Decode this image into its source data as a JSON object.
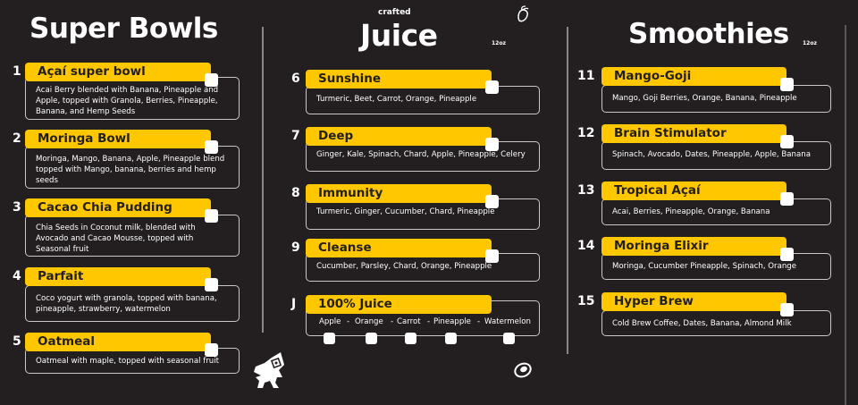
{
  "colors": {
    "background": "#231f20",
    "accent": "#ffc700",
    "text": "#ffffff"
  },
  "bowls": {
    "title": "Super Bowls",
    "items": [
      {
        "number": "1",
        "name": "Açaí super bowl",
        "description": "Acai Berry blended with Banana, Pineapple and Apple, topped with Granola, Berries, Pineapple, Banana, and Hemp Seeds"
      },
      {
        "number": "2",
        "name": "Moringa Bowl",
        "description": "Moringa, Mango, Banana, Apple, Pineapple blend topped with Mango, banana, berries and hemp seeds"
      },
      {
        "number": "3",
        "name": "Cacao Chia Pudding",
        "description": "Chia Seeds in Coconut milk, blended with Avocado and Cacao Mousse, topped with Seasonal fruit"
      },
      {
        "number": "4",
        "name": "Parfait",
        "description": "Coco yogurt with granola, topped with banana, pineapple, strawberry, watermelon"
      },
      {
        "number": "5",
        "name": "Oatmeal",
        "description": "Oatmeal with maple, topped with seasonal fruit"
      }
    ]
  },
  "juice": {
    "kicker": "crafted",
    "title": "Juice",
    "size": "12oz",
    "items": [
      {
        "number": "6",
        "name": "Sunshine",
        "description": "Turmeric, Beet, Carrot, Orange, Pineapple"
      },
      {
        "number": "7",
        "name": "Deep",
        "description": "Ginger, Kale, Spinach, Chard, Apple, Pineapple, Celery"
      },
      {
        "number": "8",
        "name": "Immunity",
        "description": "Turmeric, Ginger, Cucumber, Chard, Pineapple"
      },
      {
        "number": "9",
        "name": "Cleanse",
        "description": "Cucumber, Parsley, Chard, Orange, Pineapple"
      }
    ],
    "pure": {
      "number": "J",
      "name": "100% Juice",
      "options": [
        "Apple",
        "Orange",
        "Carrot",
        "Pineapple",
        "Watermelon"
      ],
      "separator": "-"
    }
  },
  "smoothies": {
    "title": "Smoothies",
    "size": "12oz",
    "items": [
      {
        "number": "11",
        "name": "Mango-Goji",
        "description": "Mango, Goji Berries, Orange, Banana, Pineapple"
      },
      {
        "number": "12",
        "name": "Brain Stimulator",
        "description": "Spinach, Avocado, Dates, Pineapple, Apple, Banana"
      },
      {
        "number": "13",
        "name": "Tropical Açaí",
        "description": "Acai, Berries, Pineapple, Orange, Banana"
      },
      {
        "number": "14",
        "name": "Moringa Elixir",
        "description": "Moringa, Cucumber Pineapple, Spinach, Orange"
      },
      {
        "number": "15",
        "name": "Hyper Brew",
        "description": "Cold Brew Coffee, Dates, Banana, Almond Milk"
      }
    ]
  },
  "icons": {
    "fruit": "mango-icon",
    "avocado": "avocado-icon",
    "mascot": "mascot-logo"
  }
}
